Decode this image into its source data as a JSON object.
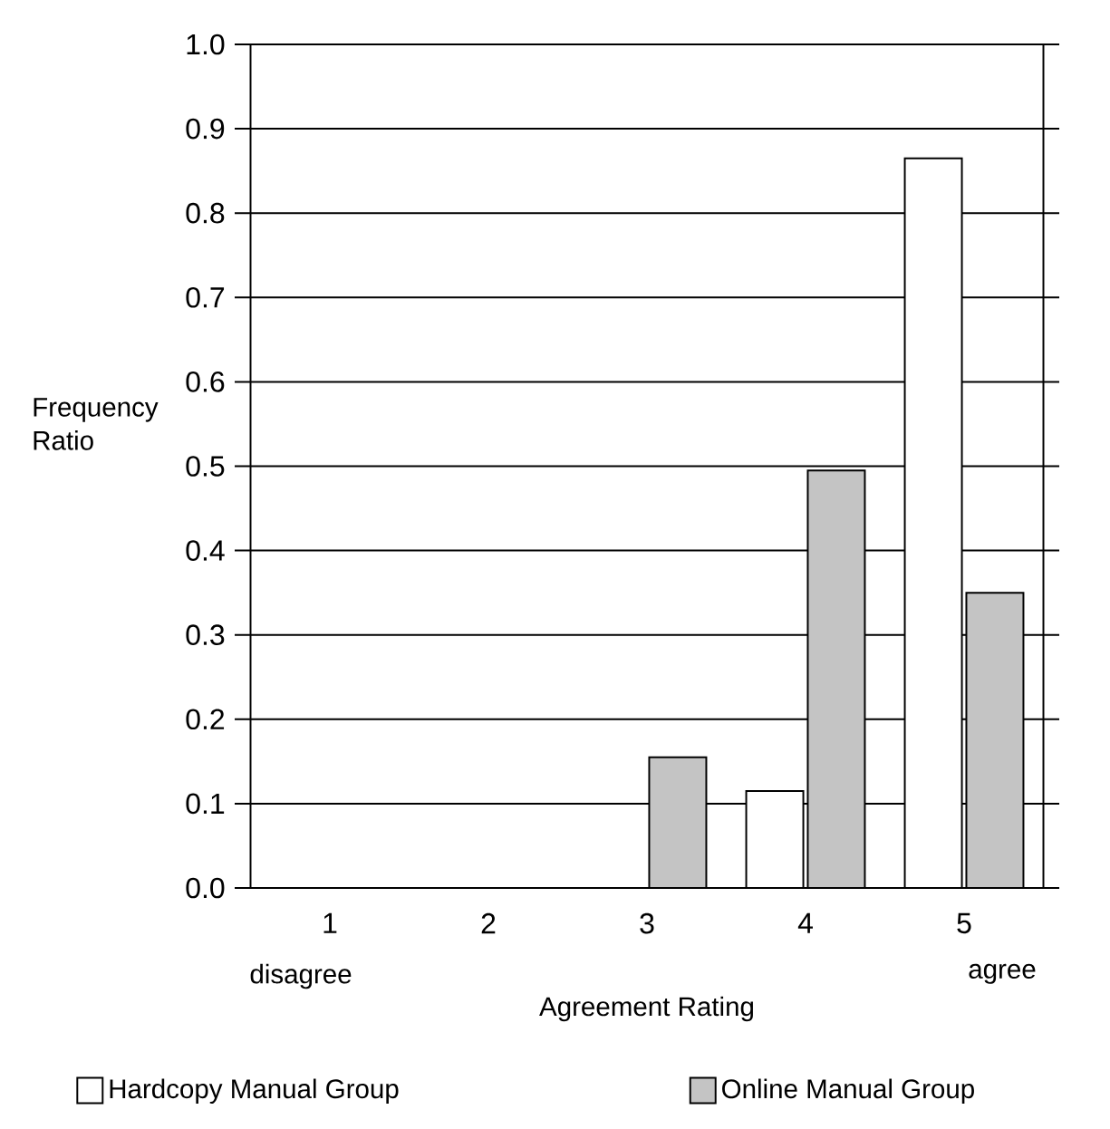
{
  "chart_data": {
    "type": "bar",
    "xlabel": "Agreement Rating",
    "ylabel": "Frequency Ratio",
    "categories": [
      "1",
      "2",
      "3",
      "4",
      "5"
    ],
    "series": [
      {
        "name": "Hardcopy Manual Group",
        "color": "#ffffff",
        "values": [
          null,
          null,
          null,
          0.115,
          0.865
        ]
      },
      {
        "name": "Online Manual Group",
        "color": "#c4c4c4",
        "values": [
          null,
          null,
          0.155,
          0.495,
          0.35
        ]
      }
    ],
    "ylim": [
      0,
      1.0
    ],
    "yticks": [
      {
        "value": 0,
        "label": "0.0"
      },
      0.1,
      0.2,
      0.3,
      0.4,
      0.5,
      0.6,
      0.7,
      0.8,
      0.9,
      {
        "value": 1.0,
        "label": "1.0"
      }
    ],
    "grid": "y",
    "legend": "bottom",
    "annotations": [
      "disagree",
      "agree"
    ]
  }
}
